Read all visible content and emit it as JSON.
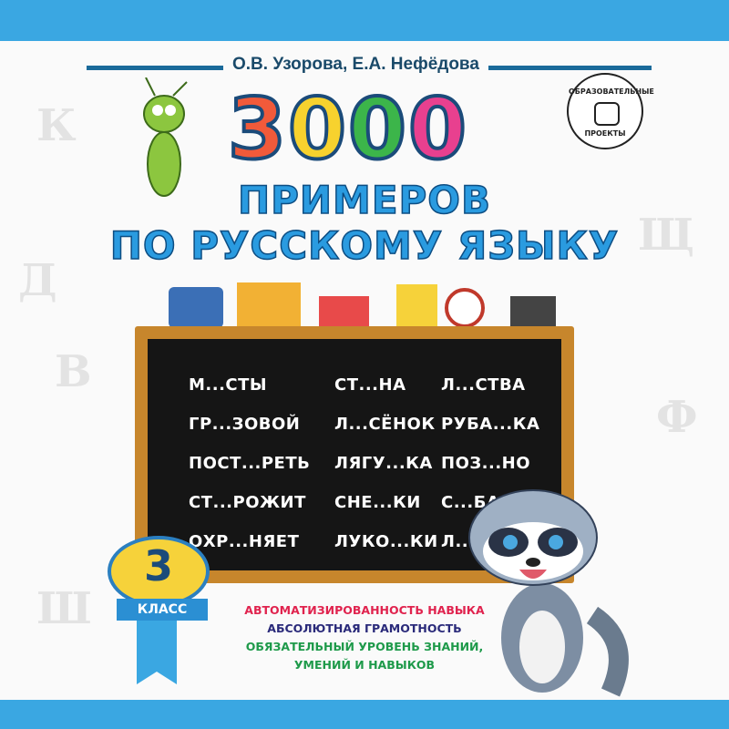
{
  "authors": "О.В. Узорова, Е.А. Нефёдова",
  "number": {
    "digits": [
      "3",
      "0",
      "0",
      "0"
    ],
    "colors": [
      "#f15a3a",
      "#f7d22e",
      "#3cb54a",
      "#e8408f"
    ]
  },
  "title": {
    "line1": "ПРИМЕРОВ",
    "line2": "ПО РУССКОМУ ЯЗЫКУ"
  },
  "publisher_logo": {
    "top": "ОБРАЗОВАТЕЛЬНЫЕ",
    "bottom": "ПРОЕКТЫ"
  },
  "board": {
    "columns": [
      [
        "М...СТЫ",
        "ГР...ЗОВОЙ",
        "ПОСТ...РЕТЬ",
        "СТ...РОЖИТ",
        "ОХР...НЯЕТ"
      ],
      [
        "СТ...НА",
        "Л...СЁНОК",
        "ЛЯГУ...КА",
        "СНЕ...КИ",
        "ЛУКО...КИ"
      ],
      [
        "Л...СТВА",
        "РУБА...КА",
        "ПОЗ...НО",
        "С...БА",
        "Л...П"
      ]
    ]
  },
  "grade": {
    "number": "3",
    "label": "КЛАСС"
  },
  "features": [
    {
      "text": "АВТОМАТИЗИРОВАННОСТЬ НАВЫКА",
      "color": "#e0234e"
    },
    {
      "text": "АБСОЛЮТНАЯ ГРАМОТНОСТЬ",
      "color": "#2a2a7a"
    },
    {
      "text": "ОБЯЗАТЕЛЬНЫЙ УРОВЕНЬ ЗНАНИЙ,",
      "color": "#1e9a4a"
    },
    {
      "text": "УМЕНИЙ И НАВЫКОВ",
      "color": "#1e9a4a"
    }
  ],
  "colors": {
    "bar": "#3aa7e2",
    "title": "#2a9be0",
    "board": "#151515",
    "frame": "#c7862c"
  }
}
